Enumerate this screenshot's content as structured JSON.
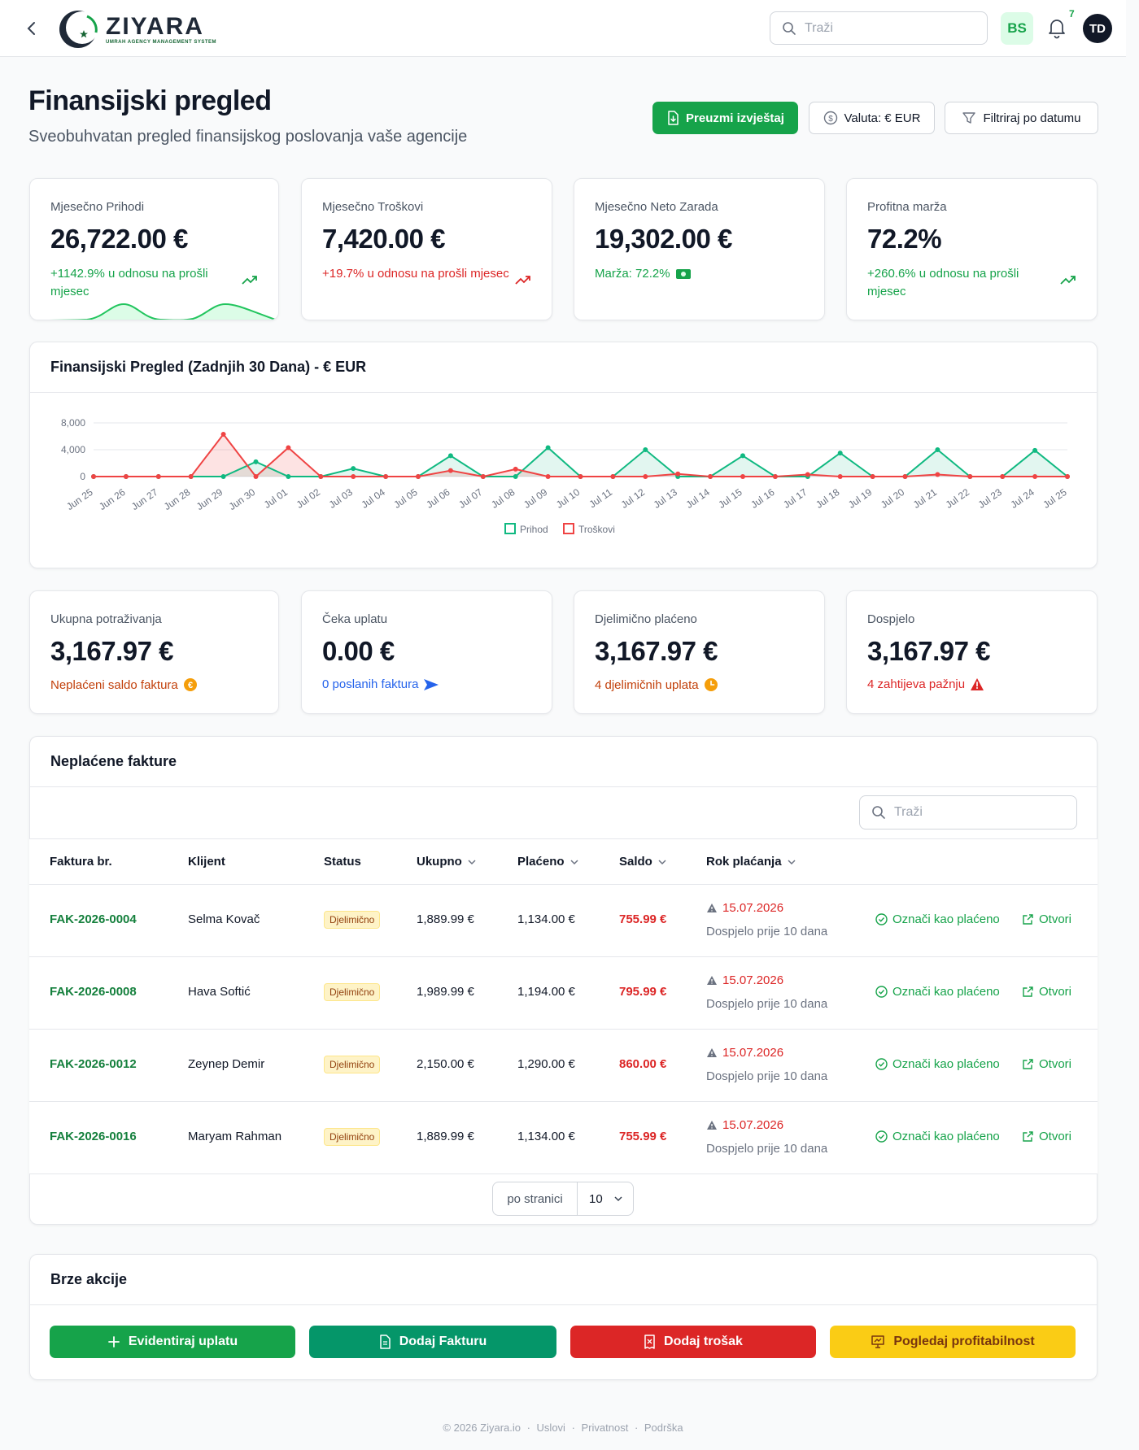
{
  "app": {
    "logo_name": "ZIYARA",
    "logo_tagline": "UMRAH AGENCY MANAGEMENT SYSTEM",
    "search_placeholder": "Traži",
    "language": "BS",
    "notifications_count": "7",
    "user_initials": "TD"
  },
  "header": {
    "title": "Finansijski pregled",
    "subtitle": "Sveobuhvatan pregled finansijskog poslovanja vaše agencije",
    "download_label": "Preuzmi izvještaj",
    "currency_label": "Valuta: € EUR",
    "filter_label": "Filtriraj po datumu"
  },
  "stats": [
    {
      "label": "Mjesečno Prihodi",
      "value": "26,722.00 €",
      "note": "+1142.9% u odnosu na prošli mjesec",
      "tone": "green"
    },
    {
      "label": "Mjesečno Troškovi",
      "value": "7,420.00 €",
      "note": "+19.7% u odnosu na prošli mjesec",
      "tone": "red"
    },
    {
      "label": "Mjesečno Neto Zarada",
      "value": "19,302.00 €",
      "note": "Marža: 72.2%",
      "tone": "green"
    },
    {
      "label": "Profitna marža",
      "value": "72.2%",
      "note": "+260.6% u odnosu na prošli mjesec",
      "tone": "green"
    }
  ],
  "chart_section": {
    "title": "Finansijski Pregled (Zadnjih 30 Dana) - € EUR"
  },
  "chart_data": {
    "type": "area",
    "categories": [
      "Jun 25",
      "Jun 26",
      "Jun 27",
      "Jun 28",
      "Jun 29",
      "Jun 30",
      "Jul 01",
      "Jul 02",
      "Jul 03",
      "Jul 04",
      "Jul 05",
      "Jul 06",
      "Jul 07",
      "Jul 08",
      "Jul 09",
      "Jul 10",
      "Jul 11",
      "Jul 12",
      "Jul 13",
      "Jul 14",
      "Jul 15",
      "Jul 16",
      "Jul 17",
      "Jul 18",
      "Jul 19",
      "Jul 20",
      "Jul 21",
      "Jul 22",
      "Jul 23",
      "Jul 24",
      "Jul 25"
    ],
    "series": [
      {
        "name": "Prihod",
        "color": "#10b981",
        "values": [
          0,
          0,
          0,
          0,
          0,
          2200,
          0,
          0,
          1200,
          0,
          0,
          3100,
          0,
          0,
          4300,
          0,
          0,
          4000,
          0,
          0,
          3100,
          0,
          0,
          3500,
          0,
          0,
          4000,
          0,
          0,
          3900,
          0
        ]
      },
      {
        "name": "Troškovi",
        "color": "#ef4444",
        "values": [
          0,
          0,
          0,
          0,
          6300,
          0,
          4300,
          0,
          0,
          0,
          0,
          900,
          0,
          1100,
          0,
          0,
          0,
          0,
          400,
          0,
          0,
          0,
          300,
          0,
          0,
          0,
          300,
          0,
          0,
          0,
          0
        ]
      }
    ],
    "yticks": [
      "8,000",
      "4,000",
      "0"
    ],
    "ylim": [
      0,
      8000
    ],
    "legend_position": "bottom",
    "grid": true
  },
  "receivables": [
    {
      "label": "Ukupna potraživanja",
      "value": "3,167.97 €",
      "note": "Neplaćeni saldo faktura",
      "tone": "orange",
      "icon": "euro-coin-icon"
    },
    {
      "label": "Čeka uplatu",
      "value": "0.00 €",
      "note": "0 poslanih faktura",
      "tone": "blue",
      "icon": "send-icon"
    },
    {
      "label": "Djelimično plaćeno",
      "value": "3,167.97 €",
      "note": "4 djelimičnih uplata",
      "tone": "orange",
      "icon": "clock-icon"
    },
    {
      "label": "Dospjelo",
      "value": "3,167.97 €",
      "note": "4 zahtijeva pažnju",
      "tone": "red",
      "icon": "warning-icon"
    }
  ],
  "invoices": {
    "title": "Neplaćene fakture",
    "search_placeholder": "Traži",
    "columns": [
      "Faktura br.",
      "Klijent",
      "Status",
      "Ukupno",
      "Plaćeno",
      "Saldo",
      "Rok plaćanja"
    ],
    "rows": [
      {
        "number": "FAK-2026-0004",
        "client": "Selma Kovač",
        "status": "Djelimično",
        "total": "1,889.99 €",
        "paid": "1,134.00 €",
        "balance": "755.99 €",
        "due": "15.07.2026",
        "due_note": "Dospjelo prije 10 dana"
      },
      {
        "number": "FAK-2026-0008",
        "client": "Hava Softić",
        "status": "Djelimično",
        "total": "1,989.99 €",
        "paid": "1,194.00 €",
        "balance": "795.99 €",
        "due": "15.07.2026",
        "due_note": "Dospjelo prije 10 dana"
      },
      {
        "number": "FAK-2026-0012",
        "client": "Zeynep Demir",
        "status": "Djelimično",
        "total": "2,150.00 €",
        "paid": "1,290.00 €",
        "balance": "860.00 €",
        "due": "15.07.2026",
        "due_note": "Dospjelo prije 10 dana"
      },
      {
        "number": "FAK-2026-0016",
        "client": "Maryam Rahman",
        "status": "Djelimično",
        "total": "1,889.99 €",
        "paid": "1,134.00 €",
        "balance": "755.99 €",
        "due": "15.07.2026",
        "due_note": "Dospjelo prije 10 dana"
      }
    ],
    "mark_paid_label": "Označi kao plaćeno",
    "open_label": "Otvori",
    "per_page_label": "po stranici",
    "per_page_value": "10"
  },
  "quick_actions": {
    "title": "Brze akcije",
    "buttons": [
      {
        "label": "Evidentiraj uplatu",
        "color": "#16a34a"
      },
      {
        "label": "Dodaj Fakturu",
        "color": "#059669"
      },
      {
        "label": "Dodaj trošak",
        "color": "#dc2626"
      },
      {
        "label": "Pogledaj profitabilnost",
        "color": "#facc15"
      }
    ]
  },
  "footer": {
    "copyright": "© 2026 Ziyara.io",
    "links": [
      "Uslovi",
      "Privatnost",
      "Podrška"
    ]
  }
}
